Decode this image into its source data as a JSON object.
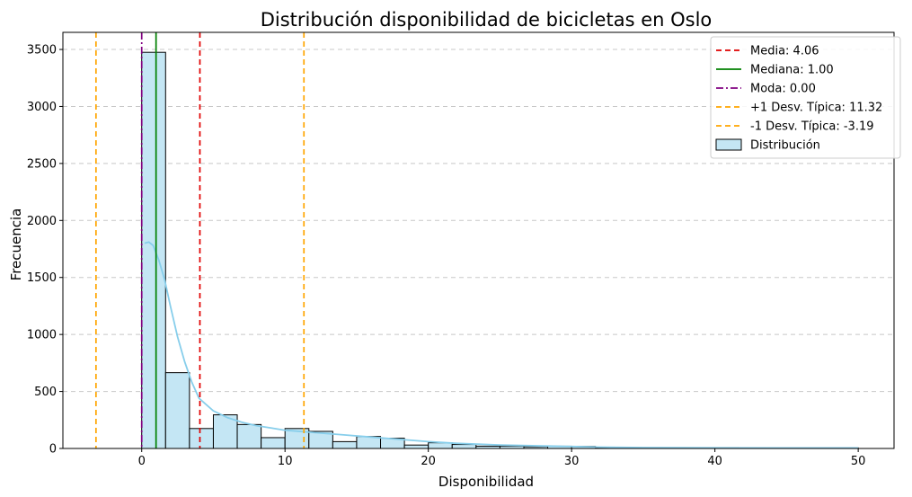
{
  "chart_data": {
    "type": "bar",
    "title": "Distribución disponibilidad de bicicletas en Oslo",
    "xlabel": "Disponibilidad",
    "ylabel": "Frecuencia",
    "xlim": [
      -5.5,
      52.5
    ],
    "ylim": [
      0,
      3650
    ],
    "xticks": [
      0,
      10,
      20,
      30,
      40,
      50
    ],
    "yticks": [
      0,
      500,
      1000,
      1500,
      2000,
      2500,
      3000,
      3500
    ],
    "grid": "y-dashed",
    "legend_position": "top-right",
    "bin_width": 1.6667,
    "bins": [
      {
        "start": 0.0,
        "end": 1.6667,
        "value": 3475
      },
      {
        "start": 1.6667,
        "end": 3.3333,
        "value": 665
      },
      {
        "start": 3.3333,
        "end": 5.0,
        "value": 175
      },
      {
        "start": 5.0,
        "end": 6.6667,
        "value": 295
      },
      {
        "start": 6.6667,
        "end": 8.3333,
        "value": 210
      },
      {
        "start": 8.3333,
        "end": 10.0,
        "value": 95
      },
      {
        "start": 10.0,
        "end": 11.6667,
        "value": 175
      },
      {
        "start": 11.6667,
        "end": 13.3333,
        "value": 150
      },
      {
        "start": 13.3333,
        "end": 15.0,
        "value": 60
      },
      {
        "start": 15.0,
        "end": 16.6667,
        "value": 105
      },
      {
        "start": 16.6667,
        "end": 18.3333,
        "value": 90
      },
      {
        "start": 18.3333,
        "end": 20.0,
        "value": 30
      },
      {
        "start": 20.0,
        "end": 21.6667,
        "value": 50
      },
      {
        "start": 21.6667,
        "end": 23.3333,
        "value": 35
      },
      {
        "start": 23.3333,
        "end": 25.0,
        "value": 20
      },
      {
        "start": 25.0,
        "end": 26.6667,
        "value": 20
      },
      {
        "start": 26.6667,
        "end": 28.3333,
        "value": 15
      },
      {
        "start": 28.3333,
        "end": 30.0,
        "value": 20
      },
      {
        "start": 30.0,
        "end": 31.6667,
        "value": 18
      },
      {
        "start": 31.6667,
        "end": 33.3333,
        "value": 4
      },
      {
        "start": 33.3333,
        "end": 35.0,
        "value": 3
      },
      {
        "start": 35.0,
        "end": 36.6667,
        "value": 6
      },
      {
        "start": 36.6667,
        "end": 38.3333,
        "value": 5
      },
      {
        "start": 38.3333,
        "end": 40.0,
        "value": 3
      },
      {
        "start": 40.0,
        "end": 41.6667,
        "value": 8
      },
      {
        "start": 41.6667,
        "end": 43.3333,
        "value": 2
      },
      {
        "start": 43.3333,
        "end": 45.0,
        "value": 2
      },
      {
        "start": 45.0,
        "end": 46.6667,
        "value": 2
      },
      {
        "start": 46.6667,
        "end": 48.3333,
        "value": 2
      },
      {
        "start": 48.3333,
        "end": 50.0,
        "value": 5
      }
    ],
    "kde": {
      "x": [
        0.2,
        0.5,
        0.8,
        1.2,
        1.6,
        2.0,
        2.5,
        3.0,
        3.5,
        4.0,
        5.0,
        6.0,
        7.0,
        8.0,
        9.0,
        10.0,
        12.0,
        14.0,
        16.0,
        18.0,
        20.0,
        22.0,
        25.0,
        28.0,
        30.0,
        32.0,
        35.0,
        40.0,
        45.0,
        50.0
      ],
      "y": [
        1800,
        1810,
        1780,
        1650,
        1480,
        1250,
        980,
        760,
        580,
        440,
        330,
        270,
        230,
        200,
        180,
        160,
        140,
        120,
        100,
        80,
        60,
        45,
        30,
        22,
        18,
        12,
        8,
        6,
        5,
        5
      ]
    },
    "reference_lines": [
      {
        "label": "Media: 4.06",
        "x": 4.06,
        "color": "#e00000",
        "style": "dashed"
      },
      {
        "label": "Mediana: 1.00",
        "x": 1.0,
        "color": "#008000",
        "style": "solid"
      },
      {
        "label": "Moda: 0.00",
        "x": 0.0,
        "color": "#800080",
        "style": "dashdot"
      },
      {
        "label": "+1 Desv. Típica: 11.32",
        "x": 11.32,
        "color": "#ffa500",
        "style": "dashed"
      },
      {
        "label": "-1 Desv. Típica: -3.19",
        "x": -3.19,
        "color": "#ffa500",
        "style": "dashed"
      }
    ],
    "distribution_label": "Distribución",
    "colors": {
      "bar_fill": "#c4e6f4",
      "bar_edge": "#000000",
      "kde_line": "#87ceeb",
      "grid": "#c8c8c8"
    }
  }
}
